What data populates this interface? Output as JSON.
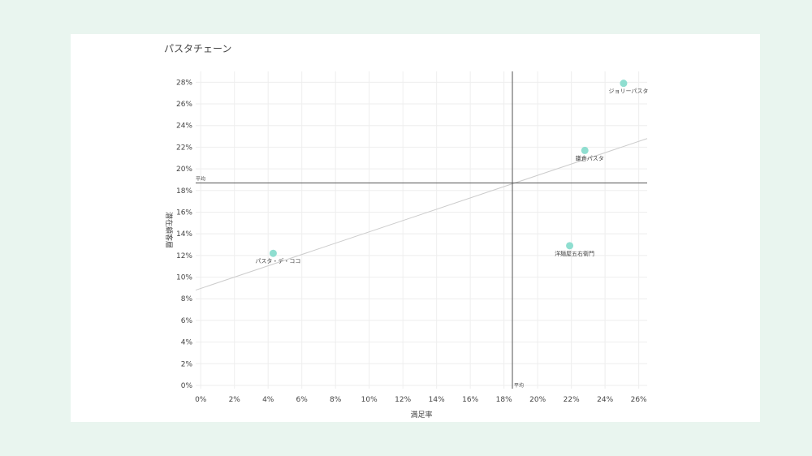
{
  "chart_data": {
    "type": "scatter",
    "title": "パスタチェーン",
    "xlabel": "満足率",
    "ylabel": "潜在顧客層",
    "xlim": [
      -0.003,
      0.265
    ],
    "ylim": [
      -0.003,
      0.29
    ],
    "x_ticks": [
      0,
      0.02,
      0.04,
      0.06,
      0.08,
      0.1,
      0.12,
      0.14,
      0.16,
      0.18,
      0.2,
      0.22,
      0.24,
      0.26
    ],
    "y_ticks": [
      0,
      0.02,
      0.04,
      0.06,
      0.08,
      0.1,
      0.12,
      0.14,
      0.16,
      0.18,
      0.2,
      0.22,
      0.24,
      0.26,
      0.28
    ],
    "grid": true,
    "points": [
      {
        "label": "ジョリーパスタ",
        "x": 0.251,
        "y": 0.279
      },
      {
        "label": "鎌倉パスタ",
        "x": 0.228,
        "y": 0.217
      },
      {
        "label": "洋麺屋五右衛門",
        "x": 0.219,
        "y": 0.129
      },
      {
        "label": "パスタ・デ・ココ",
        "x": 0.043,
        "y": 0.122
      }
    ],
    "average": {
      "label": "平均",
      "x": 0.185,
      "y": 0.187
    },
    "trendline": {
      "x": [
        -0.003,
        0.265
      ],
      "y": [
        0.088,
        0.228
      ]
    },
    "colors": {
      "marker": "#8fded0",
      "grid": "#eeeeee",
      "axis_line": "#555555",
      "trend": "#cccccc",
      "text": "#444444"
    }
  }
}
